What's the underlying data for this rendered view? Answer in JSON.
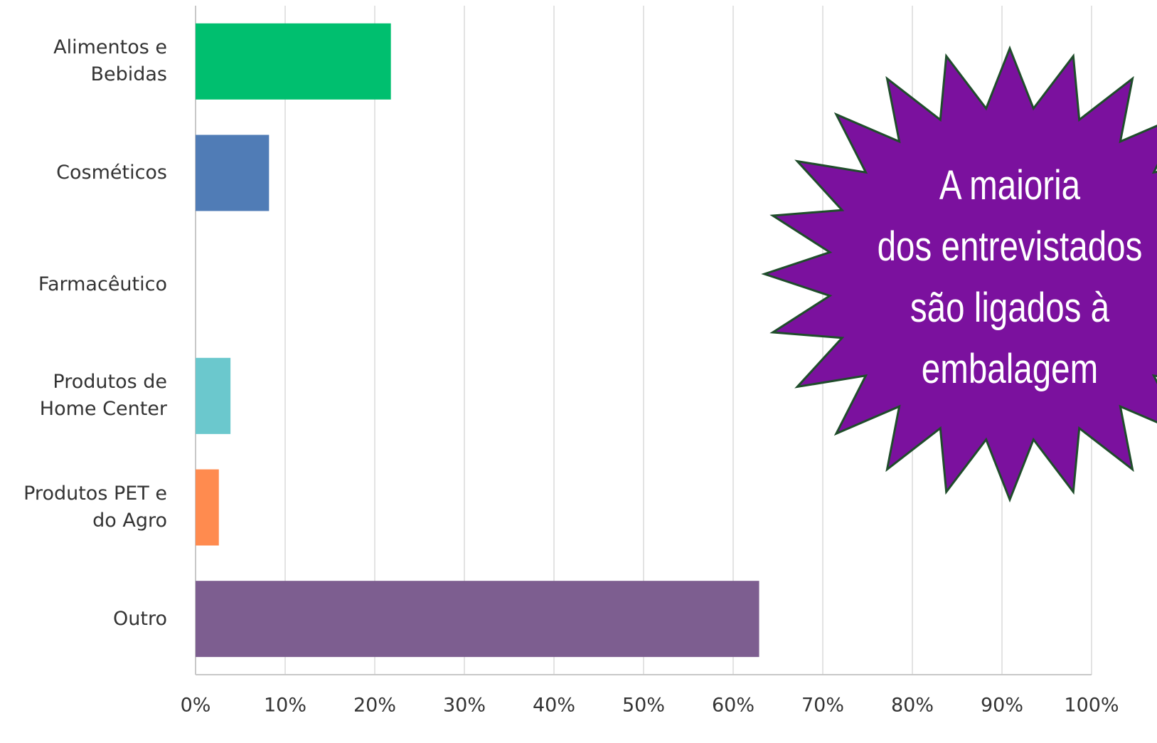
{
  "chart_data": {
    "type": "bar",
    "orientation": "horizontal",
    "categories": [
      "Alimentos e\nBebidas",
      "Cosméticos",
      "Farmacêutico",
      "Produtos de\nHome Center",
      "Produtos PET e\ndo Agro",
      "Outro"
    ],
    "values": [
      21.8,
      8.2,
      0,
      3.9,
      2.6,
      62.9
    ],
    "colors": [
      "#00bf6f",
      "#507cb6",
      "#f9be00",
      "#6bc8cd",
      "#ff8b4f",
      "#7d5e90"
    ],
    "xlim": [
      0,
      100
    ],
    "xticks": [
      {
        "value": 0,
        "label": "0%"
      },
      {
        "value": 10,
        "label": "10%"
      },
      {
        "value": 20,
        "label": "20%"
      },
      {
        "value": 30,
        "label": "30%"
      },
      {
        "value": 40,
        "label": "40%"
      },
      {
        "value": 50,
        "label": "50%"
      },
      {
        "value": 60,
        "label": "60%"
      },
      {
        "value": 70,
        "label": "70%"
      },
      {
        "value": 80,
        "label": "80%"
      },
      {
        "value": 90,
        "label": "90%"
      },
      {
        "value": 100,
        "label": "100%"
      }
    ],
    "grid": true,
    "annotation": "A maioria\ndos entrevistados\nsão ligados à\nembalagem"
  }
}
